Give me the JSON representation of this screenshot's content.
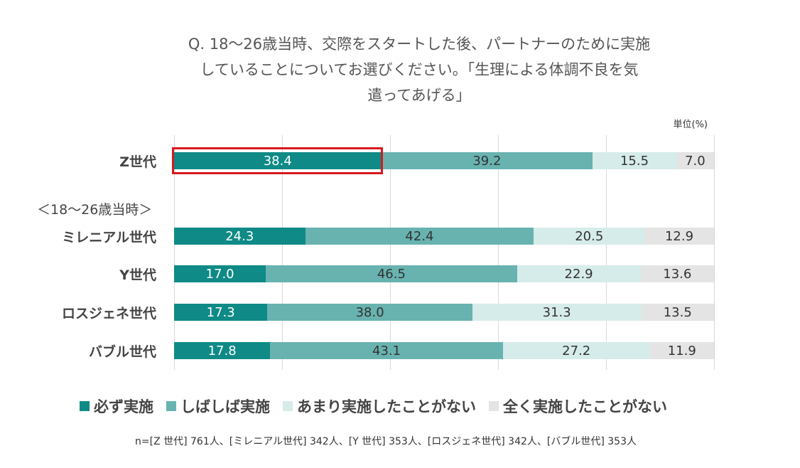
{
  "title_lines": [
    "Q. 18〜26歳当時、交際をスタートした後、パートナーのために実施",
    "していることについてお選びください。「生理による体調不良を気",
    "遣ってあげる」"
  ],
  "unit_label": "単位(%)",
  "group_label": "＜18〜26歳当時＞",
  "note": "n=[Z 世代] 761人、[ミレニアル世代] 342人、[Y 世代] 353人、[ロスジェネ世代] 342人、[バブル世代] 353人",
  "chart_data": {
    "type": "bar",
    "orientation": "horizontal-stacked-100",
    "categories": [
      "Z世代",
      "ミレニアル世代",
      "Y世代",
      "ロスジェネ世代",
      "バブル世代"
    ],
    "series": [
      {
        "name": "必ず実施",
        "color": "#0f8a86",
        "values": [
          38.4,
          24.3,
          17.0,
          17.3,
          17.8
        ]
      },
      {
        "name": "しばしば実施",
        "color": "#68b3b0",
        "values": [
          39.2,
          42.4,
          46.5,
          38.0,
          43.1
        ]
      },
      {
        "name": "あまり実施したことがない",
        "color": "#d6ecea",
        "values": [
          15.5,
          20.5,
          22.9,
          31.3,
          27.2
        ]
      },
      {
        "name": "全く実施したことがない",
        "color": "#e4e4e4",
        "values": [
          7.0,
          12.9,
          13.6,
          13.5,
          11.9
        ]
      }
    ],
    "value_labels": [
      [
        "38.4",
        "39.2",
        "15.5",
        "7.0"
      ],
      [
        "24.3",
        "42.4",
        "20.5",
        "12.9"
      ],
      [
        "17.0",
        "46.5",
        "22.9",
        "13.6"
      ],
      [
        "17.3",
        "38.0",
        "31.3",
        "13.5"
      ],
      [
        "17.8",
        "43.1",
        "27.2",
        "11.9"
      ]
    ],
    "xlim": [
      0,
      100
    ],
    "gridlines_at": [
      0,
      20,
      40,
      60,
      80,
      100
    ],
    "highlight": {
      "category": "Z世代",
      "series": "必ず実施",
      "color": "#d71920"
    },
    "legend_position": "bottom"
  }
}
